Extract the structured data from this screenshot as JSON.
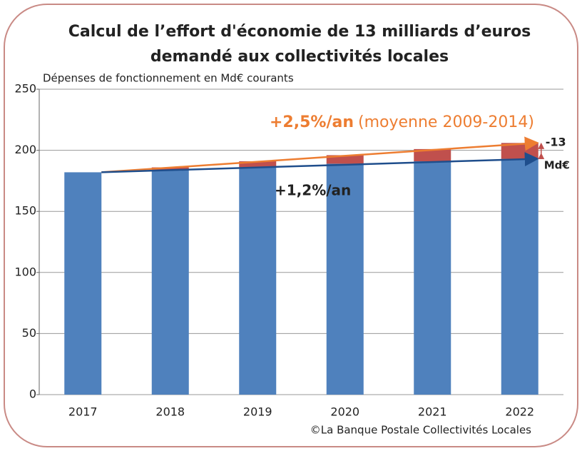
{
  "chart_data": {
    "type": "stacked_bar",
    "title_lines": [
      "Calcul de l’effort d'économie de 13 milliards d’euros",
      "demandé aux collectivités locales"
    ],
    "subtitle": "Dépenses de fonctionnement en Md€ courants",
    "source": "©La Banque Postale Collectivités Locales",
    "categories": [
      "2017",
      "2018",
      "2019",
      "2020",
      "2021",
      "2022"
    ],
    "series": [
      {
        "color": "#4f81bd",
        "values": [
          182,
          184,
          186,
          189,
          191,
          193
        ]
      },
      {
        "color": "#c0504d",
        "values": [
          0,
          2,
          5,
          7,
          10,
          13
        ]
      }
    ],
    "ylim": [
      0,
      250
    ],
    "yticks": [
      0,
      50,
      100,
      150,
      200,
      250
    ],
    "grid": true,
    "annotations": {
      "high_rate": "+2,5%/an",
      "high_note": "(moyenne 2009-2014)",
      "low_rate": "+1,2%/an",
      "gap": "-13",
      "gap_unit": "Md€"
    },
    "annotation_colors": {
      "high": "#ed7d31",
      "low": "#1f4e8c",
      "gap": "#c0504d"
    }
  }
}
